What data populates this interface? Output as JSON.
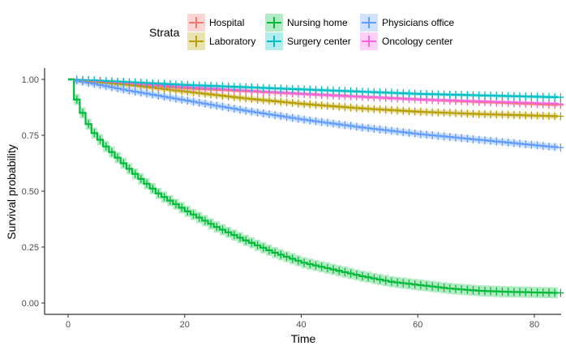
{
  "chart_data": {
    "type": "line",
    "subtype": "kaplan-meier-step",
    "xlabel": "Time",
    "ylabel": "Survival probability",
    "xlim": [
      0,
      84
    ],
    "ylim": [
      0,
      1
    ],
    "x_ticks": [
      0,
      20,
      40,
      60,
      80
    ],
    "y_ticks": [
      0.0,
      0.25,
      0.5,
      0.75,
      1.0
    ],
    "y_tick_labels": [
      "0.00",
      "0.25",
      "0.50",
      "0.75",
      "1.00"
    ],
    "grid": false,
    "confidence_bands": true,
    "censor_marks": "+",
    "legend": {
      "title": "Strata",
      "placement": "top",
      "entries": [
        "Hospital",
        "Laboratory",
        "Nursing home",
        "Surgery center",
        "Physicians office",
        "Oncology center"
      ]
    },
    "series": [
      {
        "name": "Hospital",
        "color": "#F8766D",
        "band_halfwidth": 0.008,
        "points": [
          [
            0,
            1.0
          ],
          [
            20,
            0.96
          ],
          [
            40,
            0.935
          ],
          [
            60,
            0.91
          ],
          [
            84,
            0.885
          ]
        ]
      },
      {
        "name": "Laboratory",
        "color": "#B79F00",
        "band_halfwidth": 0.012,
        "points": [
          [
            0,
            1.0
          ],
          [
            10,
            0.975
          ],
          [
            20,
            0.945
          ],
          [
            30,
            0.915
          ],
          [
            40,
            0.89
          ],
          [
            50,
            0.87
          ],
          [
            60,
            0.855
          ],
          [
            70,
            0.845
          ],
          [
            84,
            0.835
          ]
        ]
      },
      {
        "name": "Nursing home",
        "color": "#00BA38",
        "band_halfwidth": 0.025,
        "points": [
          [
            0,
            1.0
          ],
          [
            1,
            0.91
          ],
          [
            2,
            0.85
          ],
          [
            3,
            0.8
          ],
          [
            4,
            0.76
          ],
          [
            5,
            0.73
          ],
          [
            6,
            0.7
          ],
          [
            8,
            0.65
          ],
          [
            10,
            0.6
          ],
          [
            12,
            0.555
          ],
          [
            15,
            0.49
          ],
          [
            20,
            0.41
          ],
          [
            25,
            0.34
          ],
          [
            30,
            0.28
          ],
          [
            35,
            0.225
          ],
          [
            40,
            0.18
          ],
          [
            45,
            0.15
          ],
          [
            50,
            0.12
          ],
          [
            55,
            0.095
          ],
          [
            60,
            0.08
          ],
          [
            65,
            0.065
          ],
          [
            70,
            0.055
          ],
          [
            75,
            0.05
          ],
          [
            84,
            0.045
          ]
        ]
      },
      {
        "name": "Surgery center",
        "color": "#00BFC4",
        "band_halfwidth": 0.008,
        "points": [
          [
            0,
            1.0
          ],
          [
            20,
            0.975
          ],
          [
            40,
            0.955
          ],
          [
            60,
            0.935
          ],
          [
            84,
            0.92
          ]
        ]
      },
      {
        "name": "Physicians office",
        "color": "#619CFF",
        "band_halfwidth": 0.015,
        "points": [
          [
            0,
            1.0
          ],
          [
            10,
            0.95
          ],
          [
            20,
            0.905
          ],
          [
            30,
            0.86
          ],
          [
            40,
            0.82
          ],
          [
            50,
            0.785
          ],
          [
            60,
            0.755
          ],
          [
            70,
            0.73
          ],
          [
            84,
            0.695
          ]
        ]
      },
      {
        "name": "Oncology center",
        "color": "#F564E3",
        "band_halfwidth": 0.008,
        "points": [
          [
            0,
            1.0
          ],
          [
            20,
            0.965
          ],
          [
            40,
            0.935
          ],
          [
            60,
            0.91
          ],
          [
            84,
            0.89
          ]
        ]
      }
    ]
  }
}
